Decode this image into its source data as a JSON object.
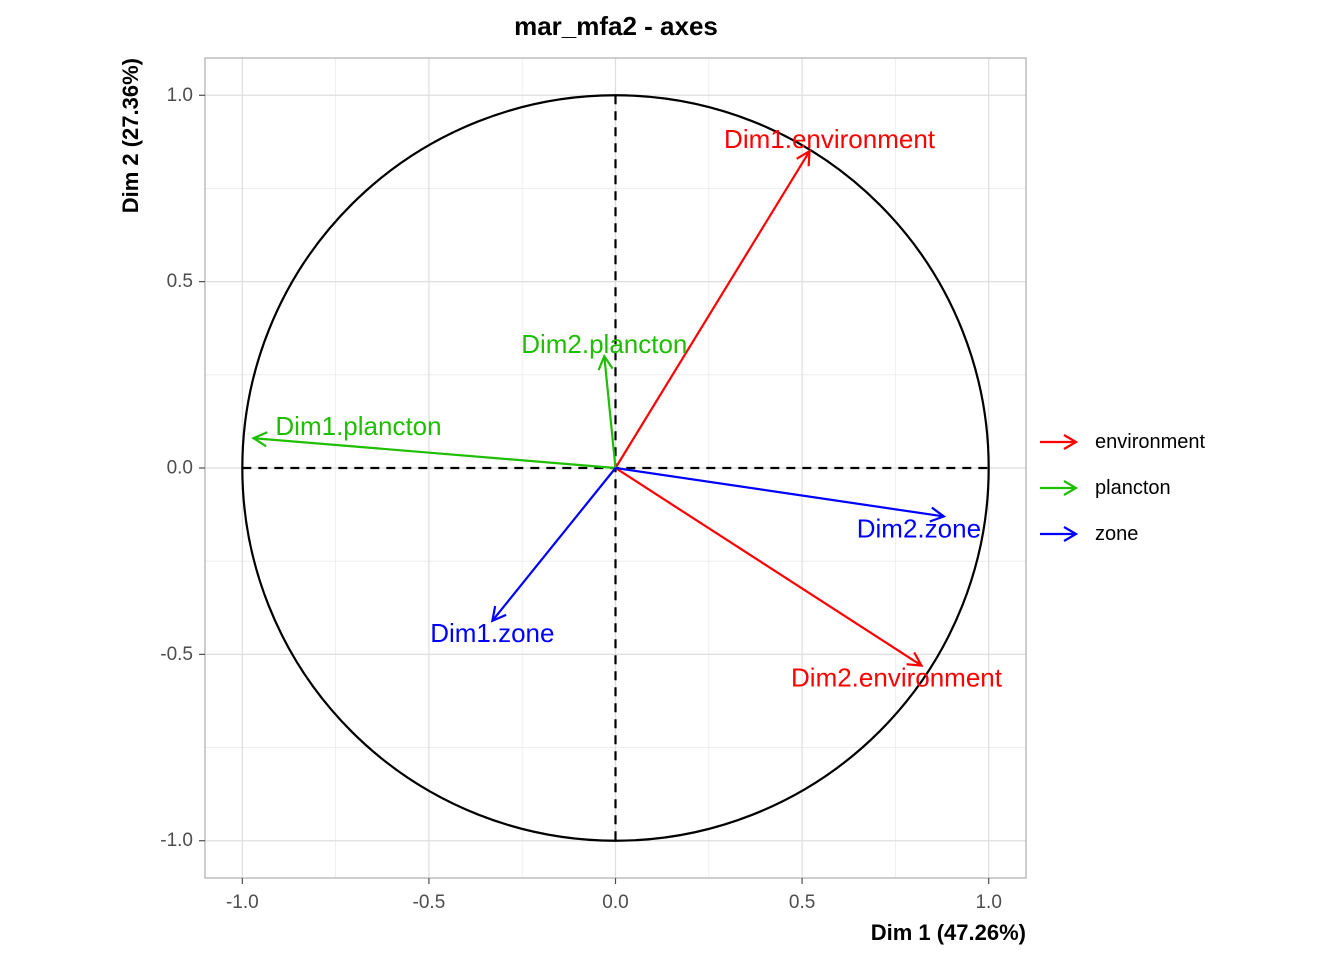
{
  "chart_data": {
    "type": "scatter",
    "title": "mar_mfa2 - axes",
    "xlabel": "Dim 1 (47.26%)",
    "ylabel": "Dim 2 (27.36%)",
    "xlim": [
      -1.1,
      1.1
    ],
    "ylim": [
      -1.1,
      1.1
    ],
    "xticks": [
      {
        "value": -1.0,
        "label": "-1.0"
      },
      {
        "value": -0.5,
        "label": "-0.5"
      },
      {
        "value": 0.0,
        "label": "0.0"
      },
      {
        "value": 0.5,
        "label": "0.5"
      },
      {
        "value": 1.0,
        "label": "1.0"
      }
    ],
    "yticks": [
      {
        "value": -1.0,
        "label": "-1.0"
      },
      {
        "value": -0.5,
        "label": "-0.5"
      },
      {
        "value": 0.0,
        "label": "0.0"
      },
      {
        "value": 0.5,
        "label": "0.5"
      },
      {
        "value": 1.0,
        "label": "1.0"
      }
    ],
    "grid": true,
    "unit_circle": true,
    "legend_position": "right",
    "groups": [
      {
        "name": "environment",
        "color": "#ff0000"
      },
      {
        "name": "plancton",
        "color": "#1ebe00"
      },
      {
        "name": "zone",
        "color": "#0000ff"
      }
    ],
    "arrows": [
      {
        "label": "Dim1.environment",
        "group": "environment",
        "x": 0.52,
        "y": 0.85
      },
      {
        "label": "Dim2.environment",
        "group": "environment",
        "x": 0.82,
        "y": -0.53
      },
      {
        "label": "Dim1.plancton",
        "group": "plancton",
        "x": -0.97,
        "y": 0.08
      },
      {
        "label": "Dim2.plancton",
        "group": "plancton",
        "x": -0.03,
        "y": 0.3
      },
      {
        "label": "Dim1.zone",
        "group": "zone",
        "x": -0.33,
        "y": -0.41
      },
      {
        "label": "Dim2.zone",
        "group": "zone",
        "x": 0.88,
        "y": -0.13
      }
    ]
  }
}
